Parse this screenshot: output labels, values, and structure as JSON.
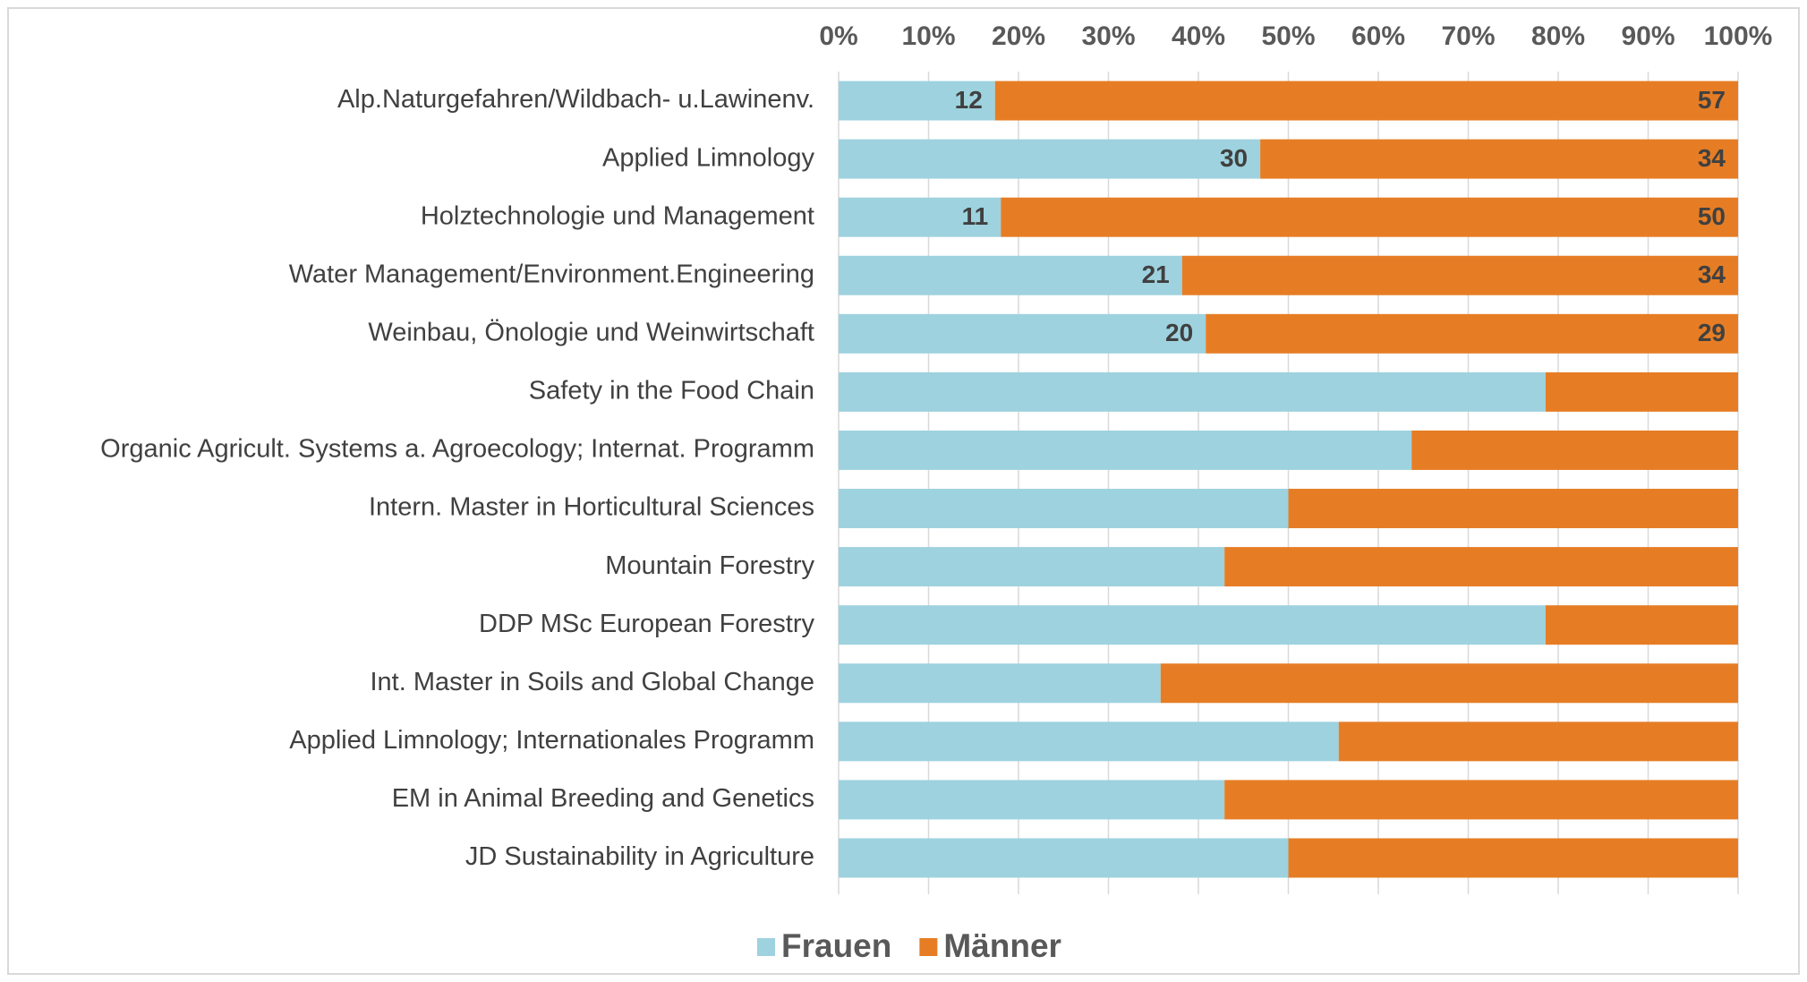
{
  "chart_data": {
    "type": "bar",
    "orientation": "horizontal",
    "stacking": "percent",
    "categories": [
      "Alp.Naturgefahren/Wildbach- u.Lawinenv.",
      "Applied Limnology",
      "Holztechnologie und Management",
      "Water Management/Environment.Engineering",
      "Weinbau, Önologie und Weinwirtschaft",
      "Safety in the Food Chain",
      "Organic Agricult. Systems a. Agroecology; Internat. Programm",
      "Intern. Master in Horticultural Sciences",
      "Mountain Forestry",
      "DDP MSc European Forestry",
      "Int. Master in Soils and Global Change",
      "Applied Limnology; Internationales Programm",
      "EM in Animal Breeding and Genetics",
      "JD Sustainability in Agriculture"
    ],
    "series": [
      {
        "name": "Frauen",
        "color": "#9ed2df",
        "values": [
          12,
          30,
          11,
          21,
          20,
          78.6,
          63.7,
          50,
          42.9,
          78.6,
          35.8,
          55.6,
          42.9,
          50
        ],
        "value_labels": [
          "12",
          "30",
          "11",
          "21",
          "20",
          null,
          null,
          null,
          null,
          null,
          null,
          null,
          null,
          null
        ]
      },
      {
        "name": "Männer",
        "color": "#e67d25",
        "values": [
          57,
          34,
          50,
          34,
          29,
          21.4,
          36.3,
          50,
          57.1,
          21.4,
          64.2,
          44.4,
          57.1,
          50
        ],
        "value_labels": [
          "57",
          "34",
          "50",
          "34",
          "29",
          null,
          null,
          null,
          null,
          null,
          null,
          null,
          null,
          null
        ]
      }
    ],
    "xlim": [
      0,
      100
    ],
    "xticks": [
      {
        "value": 0,
        "label": "0%"
      },
      {
        "value": 10,
        "label": "10%"
      },
      {
        "value": 20,
        "label": "20%"
      },
      {
        "value": 30,
        "label": "30%"
      },
      {
        "value": 40,
        "label": "40%"
      },
      {
        "value": 50,
        "label": "50%"
      },
      {
        "value": 60,
        "label": "60%"
      },
      {
        "value": 70,
        "label": "70%"
      },
      {
        "value": 80,
        "label": "80%"
      },
      {
        "value": 90,
        "label": "90%"
      },
      {
        "value": 100,
        "label": "100%"
      }
    ],
    "grid": true,
    "legend": "bottom"
  }
}
